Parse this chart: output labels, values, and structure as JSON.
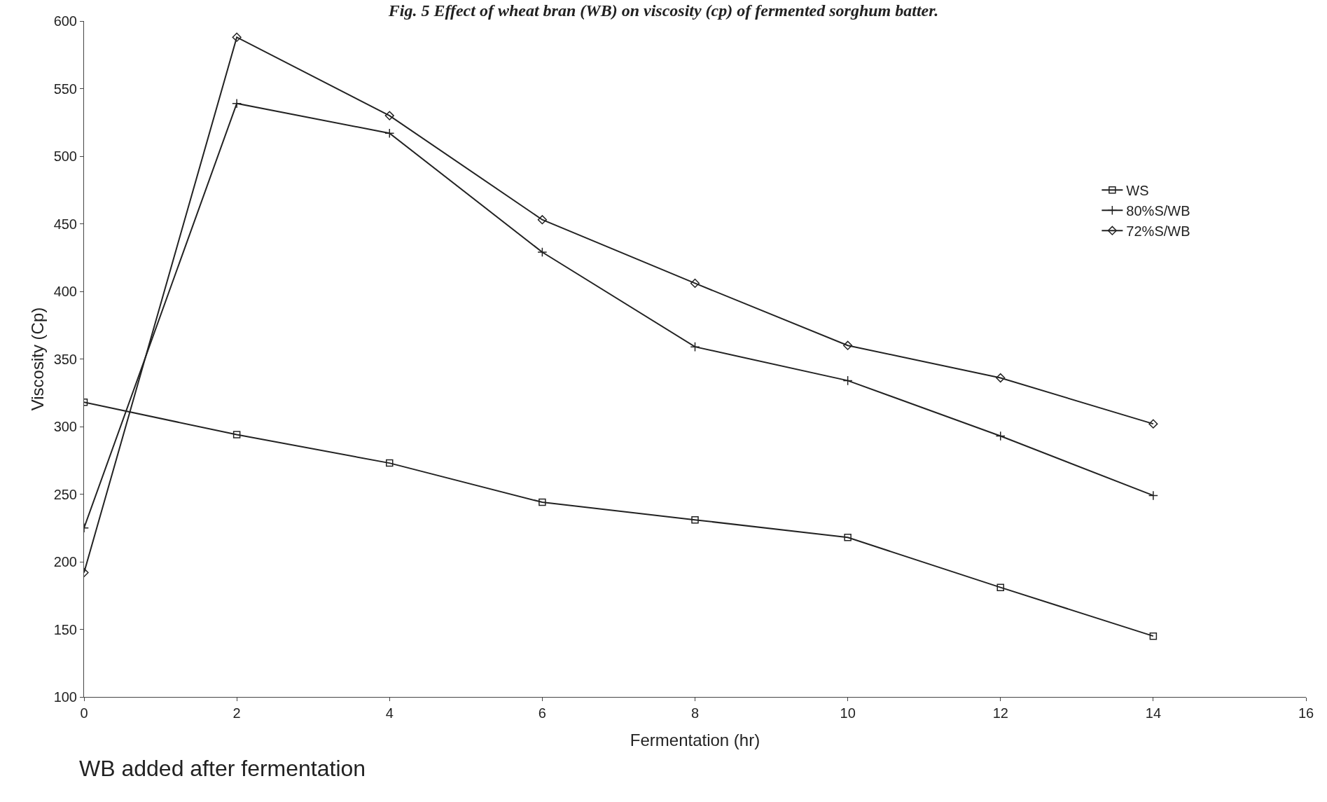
{
  "chart_data": {
    "type": "line",
    "title": "Fig. 5 Effect of wheat bran (WB) on viscosity (cp) of fermented sorghum batter.",
    "xlabel": "Fermentation (hr)",
    "ylabel": "Viscosity (Cp)",
    "x": [
      0,
      2,
      4,
      6,
      8,
      10,
      12,
      14
    ],
    "series": [
      {
        "name": "WS",
        "color": "#222222",
        "marker": "square",
        "values": [
          318,
          294,
          273,
          244,
          231,
          218,
          181,
          145
        ]
      },
      {
        "name": "80%S/WB",
        "color": "#222222",
        "marker": "cross",
        "values": [
          225,
          539,
          517,
          429,
          359,
          334,
          293,
          249
        ]
      },
      {
        "name": "72%S/WB",
        "color": "#222222",
        "marker": "diamond",
        "values": [
          192,
          588,
          530,
          453,
          406,
          360,
          336,
          302
        ]
      }
    ],
    "xlim": [
      0,
      16
    ],
    "xticks": [
      0,
      2,
      4,
      6,
      8,
      10,
      12,
      14,
      16
    ],
    "ylim": [
      100,
      600
    ],
    "yticks": [
      100,
      150,
      200,
      250,
      300,
      350,
      400,
      450,
      500,
      550,
      600
    ],
    "grid": false,
    "legend": "right",
    "line_style": "solid",
    "annotations": [
      "WB added after fermentation"
    ]
  }
}
